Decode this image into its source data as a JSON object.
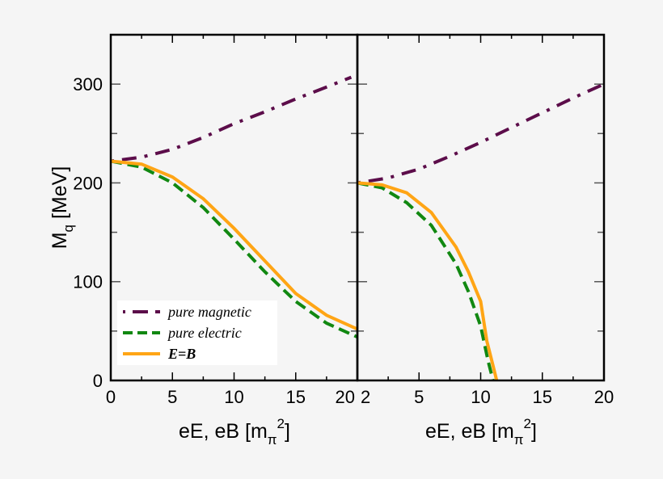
{
  "chart_data": [
    {
      "type": "line",
      "panel": "left",
      "xlabel": "eE, eB [m_π^2]",
      "ylabel": "M_q [MeV]",
      "xlim": [
        0,
        20
      ],
      "ylim": [
        0,
        350
      ],
      "xticks": [
        "0",
        "5",
        "10",
        "15",
        "20"
      ],
      "yticks": [
        "0",
        "100",
        "200",
        "300"
      ],
      "grid": false,
      "legend_position": "bottom-left",
      "series": [
        {
          "name": "pure magnetic",
          "color": "#5c0d4a",
          "style": "dash-dot",
          "x": [
            0,
            2.5,
            5,
            7.5,
            10,
            12.5,
            15,
            17.5,
            19.5
          ],
          "y": [
            222,
            226,
            234,
            246,
            260,
            272,
            285,
            297,
            307
          ]
        },
        {
          "name": "pure electric",
          "color": "#118811",
          "style": "dashed",
          "x": [
            0,
            2.5,
            5,
            7.5,
            10,
            12.5,
            15,
            17.5,
            20
          ],
          "y": [
            222,
            216,
            200,
            175,
            143,
            110,
            80,
            58,
            44
          ]
        },
        {
          "name": "E=B",
          "color": "#ffa515",
          "style": "solid",
          "x": [
            0,
            2.5,
            5,
            7.5,
            10,
            12.5,
            15,
            17.5,
            20
          ],
          "y": [
            222,
            219,
            206,
            184,
            154,
            121,
            88,
            66,
            52
          ]
        }
      ]
    },
    {
      "type": "line",
      "panel": "right",
      "xlabel": "eE, eB [m_π^2]",
      "xlim": [
        0,
        20
      ],
      "ylim": [
        0,
        350
      ],
      "xticks": [
        "2",
        "5",
        "10",
        "15",
        "20"
      ],
      "grid": false,
      "series": [
        {
          "name": "pure magnetic",
          "color": "#5c0d4a",
          "style": "dash-dot",
          "x": [
            0,
            2.5,
            5,
            7.5,
            10,
            12.5,
            15,
            17.5,
            20
          ],
          "y": [
            200,
            205,
            214,
            227,
            241,
            256,
            271,
            286,
            300
          ]
        },
        {
          "name": "pure electric",
          "color": "#118811",
          "style": "dashed",
          "x": [
            0,
            2,
            4,
            6,
            8,
            9,
            10,
            10.6,
            11
          ],
          "y": [
            200,
            195,
            180,
            157,
            118,
            90,
            55,
            20,
            0
          ]
        },
        {
          "name": "E=B",
          "color": "#ffa515",
          "style": "solid",
          "x": [
            0,
            2,
            4,
            6,
            8,
            9,
            10,
            10.5,
            11,
            11.3
          ],
          "y": [
            200,
            198,
            190,
            170,
            135,
            110,
            80,
            40,
            15,
            0
          ]
        }
      ]
    }
  ],
  "labels": {
    "ylabel_main": "M",
    "ylabel_sub": "q",
    "ylabel_unit": " [MeV]",
    "xlabel_main": "eE, eB [m",
    "xlabel_sub": "π",
    "xlabel_sup": "2",
    "xlabel_close": "]"
  },
  "legend": [
    "pure magnetic",
    "pure electric",
    "E=B"
  ]
}
